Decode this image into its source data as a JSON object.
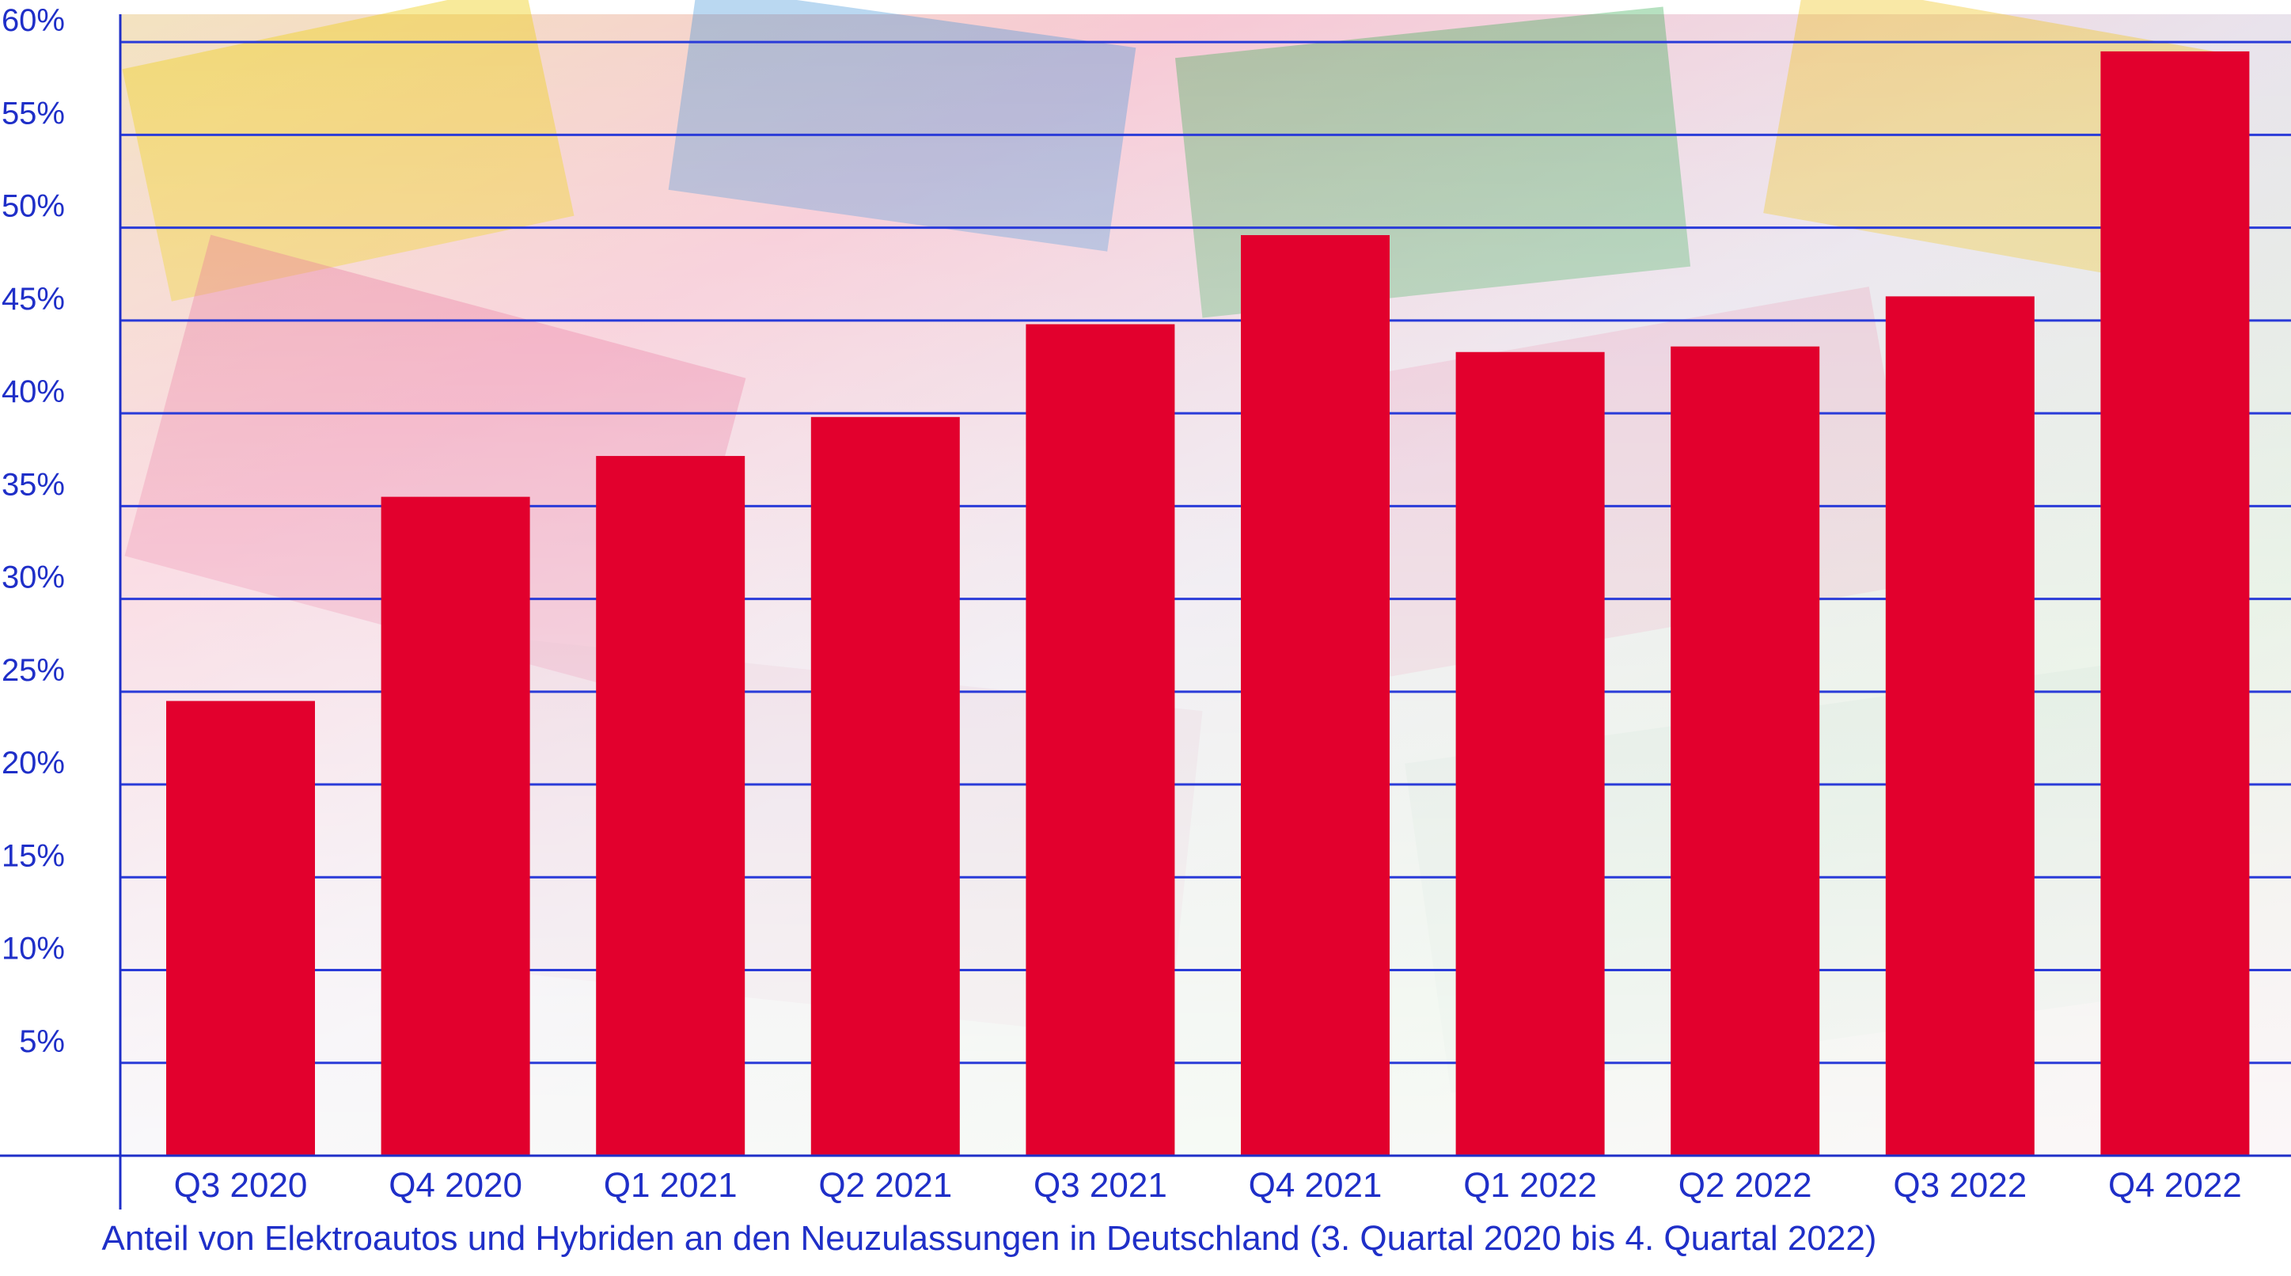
{
  "chart_data": {
    "type": "bar",
    "categories": [
      "Q3 2020",
      "Q4 2020",
      "Q1 2021",
      "Q2 2021",
      "Q3 2021",
      "Q4 2021",
      "Q1 2022",
      "Q2 2022",
      "Q3 2022",
      "Q4 2022"
    ],
    "values": [
      24.5,
      35.5,
      37.7,
      39.8,
      44.8,
      49.6,
      43.3,
      43.6,
      46.3,
      59.5
    ],
    "y_tick_labels": [
      "5%",
      "10%",
      "15%",
      "20%",
      "25%",
      "30%",
      "35%",
      "40%",
      "45%",
      "50%",
      "55%",
      "60%"
    ],
    "ylim": [
      0,
      61.5
    ],
    "grid": true,
    "caption": "Anteil von Elektroautos und Hybriden an den Neuzulassungen in Deutschland (3. Quartal 2020 bis 4. Quartal 2022)",
    "colors": {
      "bar": "#e2002d",
      "axis": "#1f2fc8",
      "grid": "#2a3bd8",
      "text": "#1f2fc8"
    }
  }
}
